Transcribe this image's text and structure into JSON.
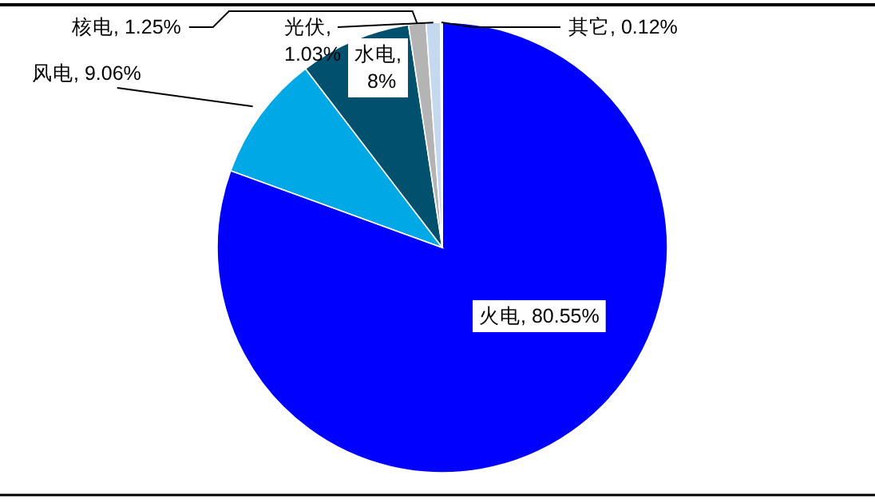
{
  "chart_data": {
    "type": "pie",
    "categories": [
      "火电",
      "风电",
      "水电",
      "核电",
      "光伏",
      "其它"
    ],
    "values": [
      80.55,
      9.06,
      8,
      1.25,
      1.03,
      0.12
    ],
    "data_labels": true,
    "value_labels": [
      ", 80.55%",
      ", 9.06%",
      ", 8%",
      ", 1.25%",
      ", 1.03%",
      ", 0.12%"
    ],
    "colors": [
      "#0000ff",
      "#00a8e6",
      "#00506e",
      "#b4b4b4",
      "#c4d8f0",
      "#f4f4f4"
    ]
  }
}
